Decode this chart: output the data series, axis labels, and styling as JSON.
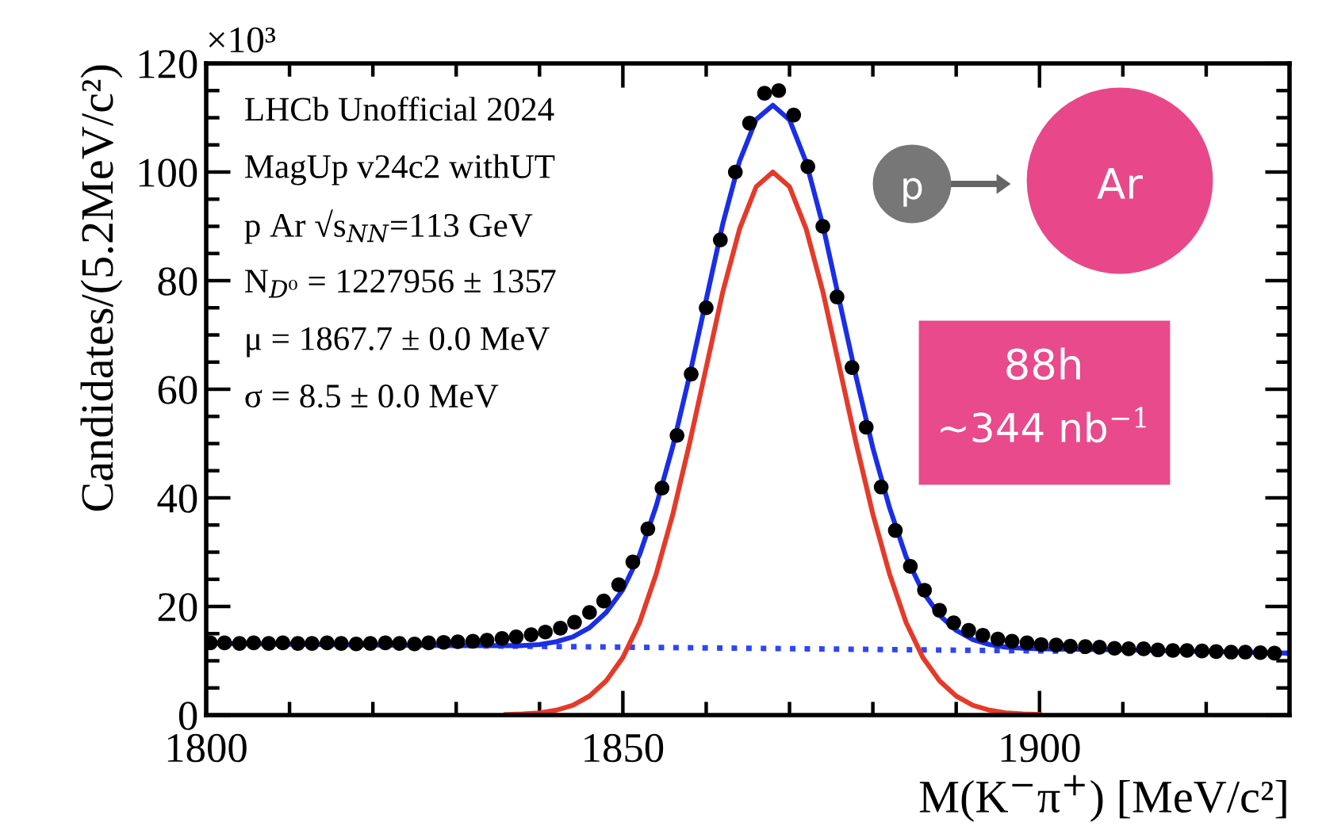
{
  "chart_data": {
    "type": "scatter",
    "xlabel": "M(K$^{−}$π$^{+}$) [MeV/c²]",
    "ylabel": "Candidates/(5.2MeV/c²)",
    "xlim": [
      1800,
      1930
    ],
    "xticks": [
      1800,
      {
        "value": 1810,
        "label": null
      },
      {
        "value": 1820,
        "label": null
      },
      {
        "value": 1830,
        "label": null
      },
      {
        "value": 1840,
        "label": null
      },
      1850,
      {
        "value": 1860,
        "label": null
      },
      {
        "value": 1870,
        "label": null
      },
      {
        "value": 1880,
        "label": null
      },
      {
        "value": 1890,
        "label": null
      },
      1900,
      {
        "value": 1910,
        "label": null
      },
      {
        "value": 1920,
        "label": null
      }
    ],
    "ylim": [
      0,
      120
    ],
    "yticks": [
      0,
      {
        "value": 5,
        "label": null
      },
      {
        "value": 10,
        "label": null
      },
      {
        "value": 15,
        "label": null
      },
      20,
      {
        "value": 25,
        "label": null
      },
      {
        "value": 30,
        "label": null
      },
      {
        "value": 35,
        "label": null
      },
      40,
      {
        "value": 45,
        "label": null
      },
      {
        "value": 50,
        "label": null
      },
      {
        "value": 55,
        "label": null
      },
      60,
      {
        "value": 65,
        "label": null
      },
      {
        "value": 70,
        "label": null
      },
      {
        "value": 75,
        "label": null
      },
      80,
      {
        "value": 85,
        "label": null
      },
      {
        "value": 90,
        "label": null
      },
      {
        "value": 95,
        "label": null
      },
      100,
      {
        "value": 105,
        "label": null
      },
      {
        "value": 110,
        "label": null
      },
      {
        "value": 115,
        "label": null
      },
      120
    ],
    "grid": false,
    "legend": false,
    "annotations": [
      "×10³",
      "LHCb Unofficial 2024",
      "MagUp v24c2 withUT",
      "p Ar √s$_{NN}$=113 GeV",
      "N$_{D⁰}$ = 1227956 ± 1357",
      "μ = 1867.7 ± 0.0 MeV",
      "σ = 8.5 ± 0.0 MeV",
      "p",
      "Ar",
      "88h",
      "~344 nb$^{−1}$"
    ],
    "series": [
      {
        "type": "line",
        "color": "#2f45f5",
        "line_style": "dotted",
        "marker": "none",
        "x": [
          1800,
          1930
        ],
        "values": [
          13.2,
          11.4
        ]
      },
      {
        "type": "line",
        "color": "#e53a2a",
        "line_style": "solid",
        "marker": "none",
        "x": [
          1836,
          1838,
          1840,
          1842,
          1844,
          1846,
          1848,
          1850,
          1852,
          1854,
          1856,
          1858,
          1860,
          1862,
          1864,
          1866,
          1868,
          1870,
          1872,
          1874,
          1876,
          1878,
          1880,
          1882,
          1884,
          1886,
          1888,
          1890,
          1892,
          1894,
          1896,
          1898,
          1900
        ],
        "values": [
          0.1,
          0.2,
          0.4,
          0.9,
          1.8,
          3.5,
          6.3,
          10.6,
          17,
          26,
          37,
          50,
          64,
          78,
          89.5,
          97.3,
          100,
          97.3,
          89.5,
          78,
          64,
          50,
          37,
          26,
          17,
          10.6,
          6.3,
          3.5,
          1.8,
          0.9,
          0.4,
          0.2,
          0.1
        ]
      },
      {
        "type": "line",
        "color": "#1a2ee6",
        "line_style": "solid",
        "marker": "none",
        "x": [
          1800,
          1820,
          1830,
          1836,
          1838,
          1840,
          1842,
          1844,
          1846,
          1848,
          1850,
          1852,
          1854,
          1856,
          1858,
          1860,
          1862,
          1864,
          1866,
          1868,
          1870,
          1872,
          1874,
          1876,
          1878,
          1880,
          1882,
          1884,
          1886,
          1888,
          1890,
          1892,
          1894,
          1896,
          1898,
          1900,
          1910,
          1920,
          1930
        ],
        "values": [
          13.2,
          12.9,
          12.8,
          12.8,
          12.8,
          13.0,
          13.5,
          14.4,
          16.1,
          18.9,
          23.1,
          29.5,
          38.5,
          49.5,
          62.5,
          76.5,
          90.5,
          102,
          109.7,
          112.3,
          109.6,
          101.8,
          90.2,
          76.2,
          62.2,
          49.2,
          38.2,
          29.1,
          22.7,
          18.4,
          15.6,
          13.9,
          13.0,
          12.5,
          12.3,
          12.2,
          12.0,
          11.7,
          11.4
        ]
      },
      {
        "color": "#000000",
        "marker": "circle",
        "x": [
          1800.5,
          1802.2,
          1804.0,
          1805.7,
          1807.5,
          1809.2,
          1811.0,
          1812.7,
          1814.5,
          1816.2,
          1818.0,
          1819.7,
          1821.5,
          1823.2,
          1825.0,
          1826.7,
          1828.5,
          1830.2,
          1832.0,
          1833.7,
          1835.5,
          1837.2,
          1839.0,
          1840.7,
          1842.5,
          1844.2,
          1846.0,
          1847.7,
          1849.5,
          1851.2,
          1853.0,
          1854.7,
          1856.5,
          1858.2,
          1860.0,
          1861.7,
          1863.5,
          1865.2,
          1867.0,
          1868.7,
          1870.5,
          1872.2,
          1874.0,
          1875.7,
          1877.5,
          1879.2,
          1881.0,
          1882.7,
          1884.5,
          1886.2,
          1888.0,
          1889.7,
          1891.5,
          1893.2,
          1895.0,
          1896.7,
          1898.5,
          1900.2,
          1902.0,
          1903.7,
          1905.5,
          1907.2,
          1909.0,
          1910.7,
          1912.5,
          1914.2,
          1916.0,
          1917.7,
          1919.5,
          1921.2,
          1923.0,
          1924.7,
          1926.5,
          1928.2
        ],
        "values": [
          13.3,
          13.3,
          13.2,
          13.3,
          13.2,
          13.3,
          13.2,
          13.2,
          13.3,
          13.2,
          13.1,
          13.2,
          13.3,
          13.2,
          13.1,
          13.3,
          13.4,
          13.5,
          13.6,
          13.8,
          14.1,
          14.4,
          14.8,
          15.3,
          16.0,
          17.1,
          18.9,
          21,
          24,
          28.2,
          34.3,
          41.8,
          51.5,
          62.8,
          75,
          87.5,
          100,
          109,
          114.5,
          115,
          110.5,
          101,
          90,
          77,
          64,
          53,
          42,
          34,
          27.4,
          23,
          19.3,
          17,
          15.6,
          14.7,
          14.0,
          13.6,
          13.3,
          13.0,
          12.9,
          12.7,
          12.6,
          12.5,
          12.3,
          12.2,
          12.2,
          12.0,
          11.9,
          11.9,
          11.8,
          11.7,
          11.6,
          11.6,
          11.5,
          11.4
        ]
      }
    ]
  }
}
